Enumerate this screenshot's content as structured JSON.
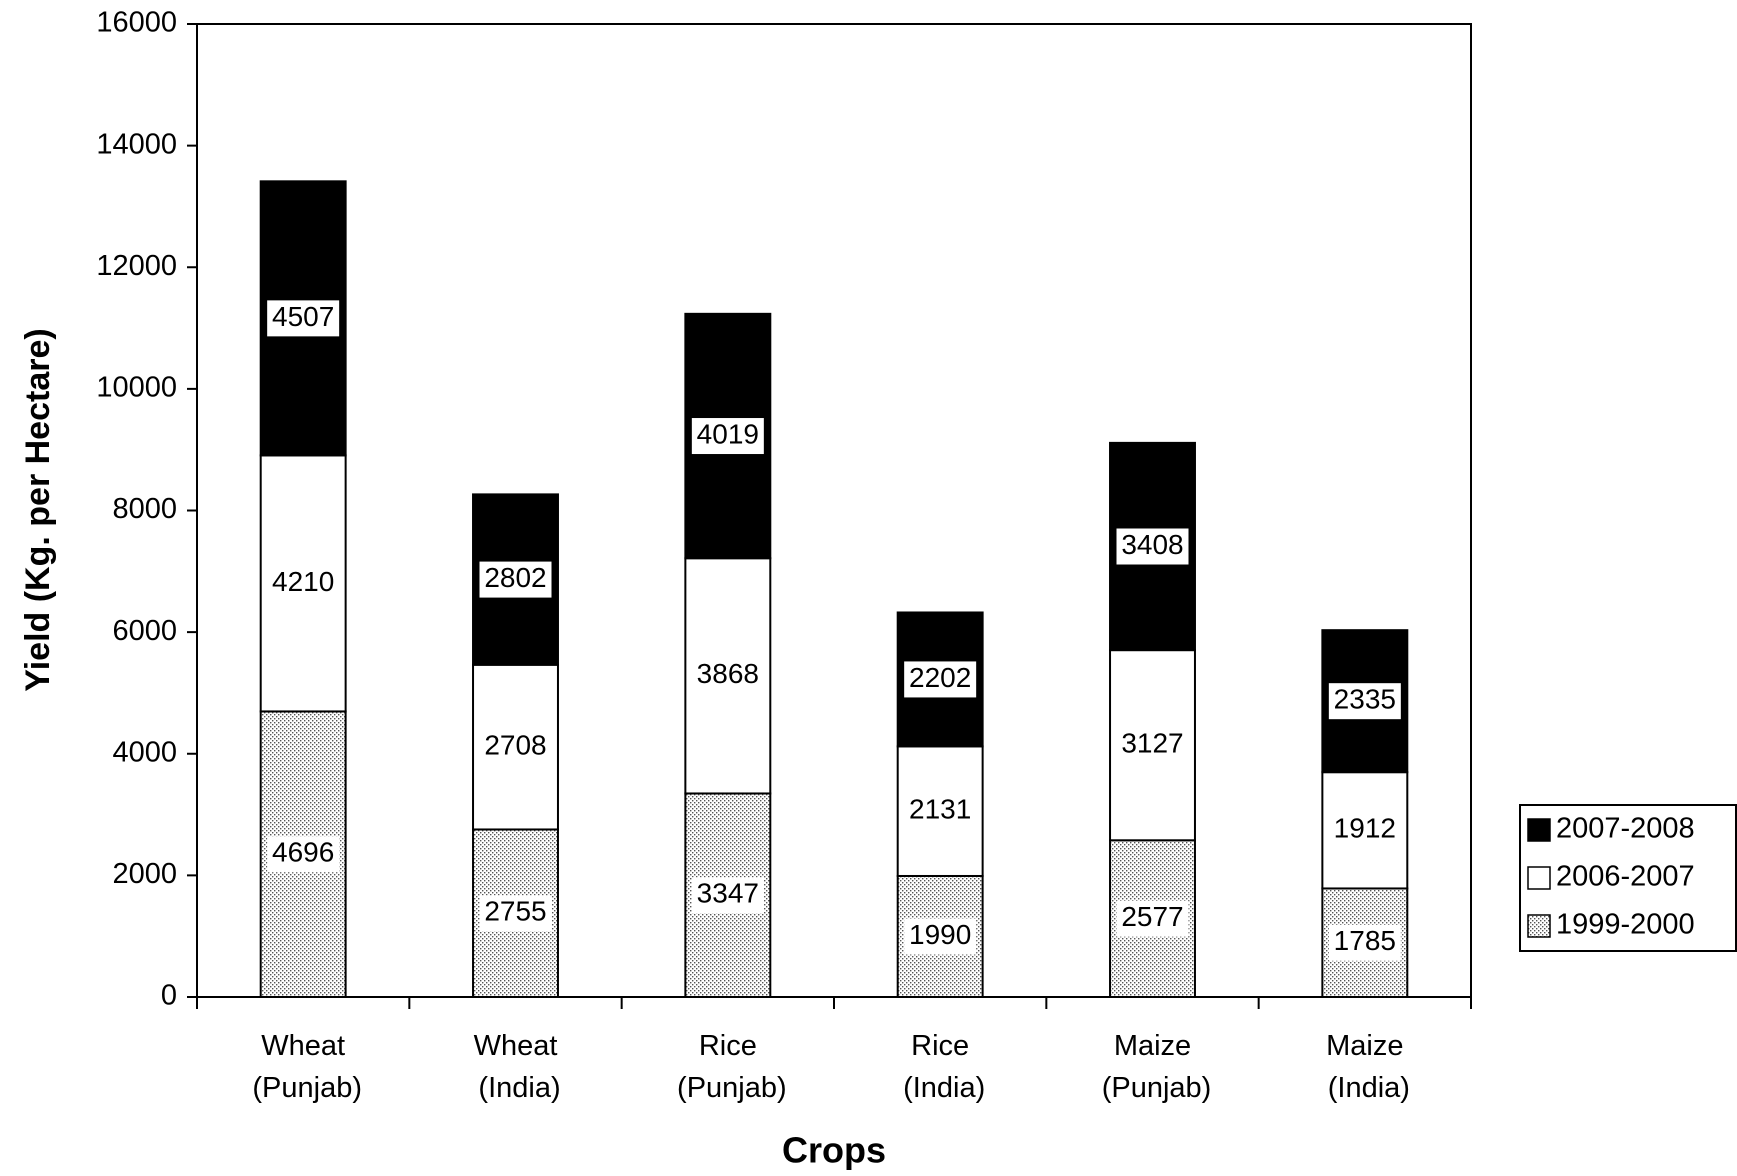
{
  "chart_data": {
    "type": "stacked_bar",
    "x_label": "Crops",
    "y_label": "Yield (Kg. per Hectare)",
    "categories": [
      "Wheat (Punjab)",
      "Wheat (India)",
      "Rice (Punjab)",
      "Rice (India)",
      "Maize (Punjab)",
      "Maize (India)"
    ],
    "series": [
      {
        "name": "1999-2000",
        "color": "#e6e6e6",
        "pattern": "dots",
        "values": [
          4696,
          2755,
          3347,
          1990,
          2577,
          1785
        ]
      },
      {
        "name": "2006-2007",
        "color": "#ffffff",
        "values": [
          4210,
          2708,
          3868,
          2131,
          3127,
          1912
        ]
      },
      {
        "name": "2007-2008",
        "color": "#000000",
        "values": [
          4507,
          2802,
          4019,
          2202,
          3408,
          2335
        ]
      }
    ],
    "ylim": [
      0,
      16000
    ],
    "yticks": [
      0,
      2000,
      4000,
      6000,
      8000,
      10000,
      12000,
      14000,
      16000
    ],
    "legend": "right"
  }
}
